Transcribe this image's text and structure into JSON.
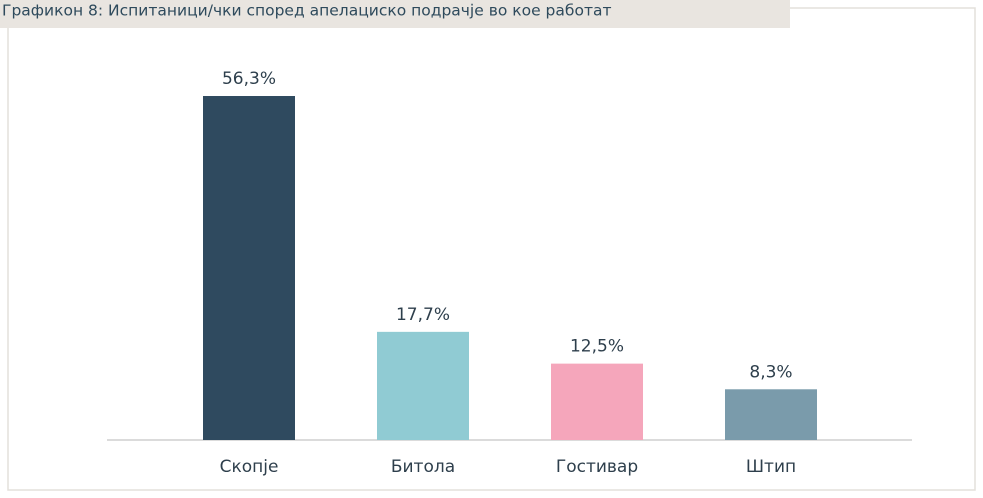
{
  "chart_data": {
    "type": "bar",
    "title": "Графикон 8: Испитаници/чки според апелациско подрачје во кое работат",
    "categories": [
      "Скопје",
      "Битола",
      "Гостивар",
      "Штип"
    ],
    "values": [
      56.3,
      17.7,
      12.5,
      8.3
    ],
    "value_labels": [
      "56,3%",
      "17,7%",
      "12,5%",
      "8,3%"
    ],
    "colors": [
      "#2f4a5f",
      "#90cbd3",
      "#f5a6bb",
      "#7a9bab"
    ],
    "ylim": [
      0,
      60
    ]
  }
}
